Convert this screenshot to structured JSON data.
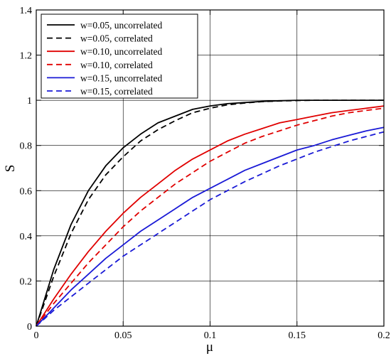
{
  "chart_data": {
    "type": "line",
    "title": "",
    "xlabel": "μ",
    "ylabel": "S",
    "xlim": [
      0,
      0.2
    ],
    "ylim": [
      0,
      1.4
    ],
    "xticks": [
      0,
      0.05,
      0.1,
      0.15,
      0.2
    ],
    "xtick_labels": [
      "0",
      "0.05",
      "0.1",
      "0.15",
      "0.2"
    ],
    "yticks": [
      0,
      0.2,
      0.4,
      0.6,
      0.8,
      1,
      1.2,
      1.4
    ],
    "ytick_labels": [
      "0",
      "0.2",
      "0.4",
      "0.6",
      "0.8",
      "1",
      "1.2",
      "1.4"
    ],
    "grid": true,
    "legend_position": "top-left",
    "x": [
      0,
      0.01,
      0.02,
      0.03,
      0.04,
      0.05,
      0.06,
      0.07,
      0.08,
      0.09,
      0.1,
      0.11,
      0.12,
      0.13,
      0.14,
      0.15,
      0.16,
      0.17,
      0.18,
      0.19,
      0.2
    ],
    "series": [
      {
        "name": "w=0.05, uncorrelated",
        "color": "#000000",
        "dash": "solid",
        "values": [
          0,
          0.25,
          0.45,
          0.6,
          0.71,
          0.79,
          0.85,
          0.9,
          0.93,
          0.96,
          0.975,
          0.985,
          0.99,
          0.995,
          0.998,
          1.0,
          1.0,
          1.0,
          1.0,
          1.0,
          1.0
        ]
      },
      {
        "name": "w=0.05, correlated",
        "color": "#000000",
        "dash": "dashed",
        "values": [
          0,
          0.22,
          0.41,
          0.56,
          0.67,
          0.75,
          0.82,
          0.87,
          0.91,
          0.945,
          0.965,
          0.98,
          0.988,
          0.994,
          0.997,
          0.999,
          1.0,
          1.0,
          1.0,
          1.0,
          1.0
        ]
      },
      {
        "name": "w=0.10, uncorrelated",
        "color": "#e00000",
        "dash": "solid",
        "values": [
          0,
          0.12,
          0.23,
          0.33,
          0.42,
          0.5,
          0.57,
          0.63,
          0.69,
          0.74,
          0.78,
          0.82,
          0.85,
          0.875,
          0.9,
          0.915,
          0.93,
          0.945,
          0.955,
          0.965,
          0.975
        ]
      },
      {
        "name": "w=0.10, correlated",
        "color": "#e00000",
        "dash": "dashed",
        "values": [
          0,
          0.1,
          0.19,
          0.28,
          0.36,
          0.44,
          0.51,
          0.57,
          0.63,
          0.68,
          0.73,
          0.77,
          0.81,
          0.84,
          0.865,
          0.89,
          0.91,
          0.93,
          0.945,
          0.955,
          0.965
        ]
      },
      {
        "name": "w=0.15, uncorrelated",
        "color": "#1a1ad6",
        "dash": "solid",
        "values": [
          0,
          0.08,
          0.16,
          0.23,
          0.3,
          0.36,
          0.42,
          0.47,
          0.52,
          0.57,
          0.61,
          0.65,
          0.69,
          0.72,
          0.75,
          0.78,
          0.8,
          0.825,
          0.845,
          0.865,
          0.88
        ]
      },
      {
        "name": "w=0.15, correlated",
        "color": "#1a1ad6",
        "dash": "dashed",
        "values": [
          0,
          0.07,
          0.13,
          0.19,
          0.25,
          0.31,
          0.36,
          0.41,
          0.46,
          0.51,
          0.56,
          0.6,
          0.64,
          0.675,
          0.71,
          0.74,
          0.77,
          0.795,
          0.82,
          0.84,
          0.86
        ]
      }
    ]
  }
}
